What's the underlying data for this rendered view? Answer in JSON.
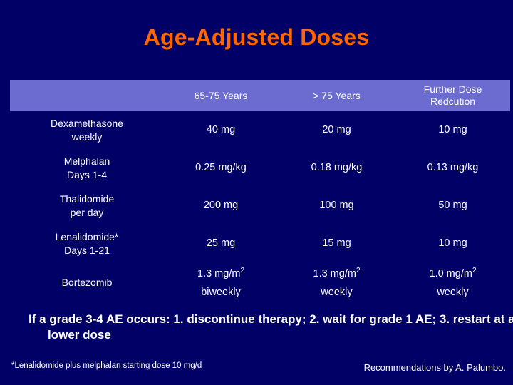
{
  "title": "Age-Adjusted Doses",
  "table": {
    "headers": [
      "",
      "65-75 Years",
      "> 75 Years",
      "Further Dose Redcution"
    ],
    "rows": [
      {
        "drug": "Dexamethasone weekly",
        "cols": [
          "40 mg",
          "20 mg",
          "10 mg"
        ]
      },
      {
        "drug": "Melphalan Days 1-4",
        "cols": [
          "0.25 mg/kg",
          "0.18 mg/kg",
          "0.13 mg/kg"
        ]
      },
      {
        "drug": "Thalidomide per day",
        "cols": [
          "200 mg",
          "100 mg",
          "50 mg"
        ]
      },
      {
        "drug": "Lenalidomide* Days 1-21",
        "cols": [
          "25 mg",
          "15 mg",
          "10 mg"
        ]
      }
    ],
    "bortezomib": {
      "drug": "Bortezomib",
      "doses": [
        "1.3 mg/m2",
        "1.3 mg/m2",
        "1.0 mg/m2"
      ],
      "schedule": [
        "biweekly",
        "weekly",
        "weekly"
      ]
    }
  },
  "note": "If a grade 3-4 AE occurs: 1. discontinue therapy; 2. wait for grade 1 AE; 3. restart at a lower dose",
  "footnote": "*Lenalidomide plus melphalan starting dose 10 mg/d",
  "credit": "Recommendations by A. Palumbo."
}
